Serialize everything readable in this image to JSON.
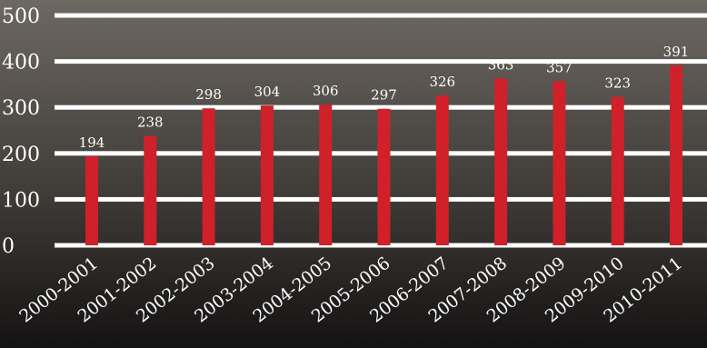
{
  "colors": {
    "bar": "#d0202a",
    "gridline": "#ffffff",
    "text": "#ffffff",
    "background_top": "#6b6660",
    "background_bottom": "#151414"
  },
  "chart_data": {
    "type": "bar",
    "title": "",
    "xlabel": "",
    "ylabel": "",
    "categories": [
      "2000-2001",
      "2001-2002",
      "2002-2003",
      "2003-2004",
      "2004-2005",
      "2005-2006",
      "2006-2007",
      "2007-2008",
      "2008-2009",
      "2009-2010",
      "2010-2011"
    ],
    "values": [
      194,
      238,
      298,
      304,
      306,
      297,
      326,
      363,
      357,
      323,
      391
    ],
    "ylim": [
      0,
      500
    ],
    "yticks": [
      "0",
      "100",
      "200",
      "300",
      "400",
      "500"
    ],
    "grid": true,
    "legend": "none"
  }
}
